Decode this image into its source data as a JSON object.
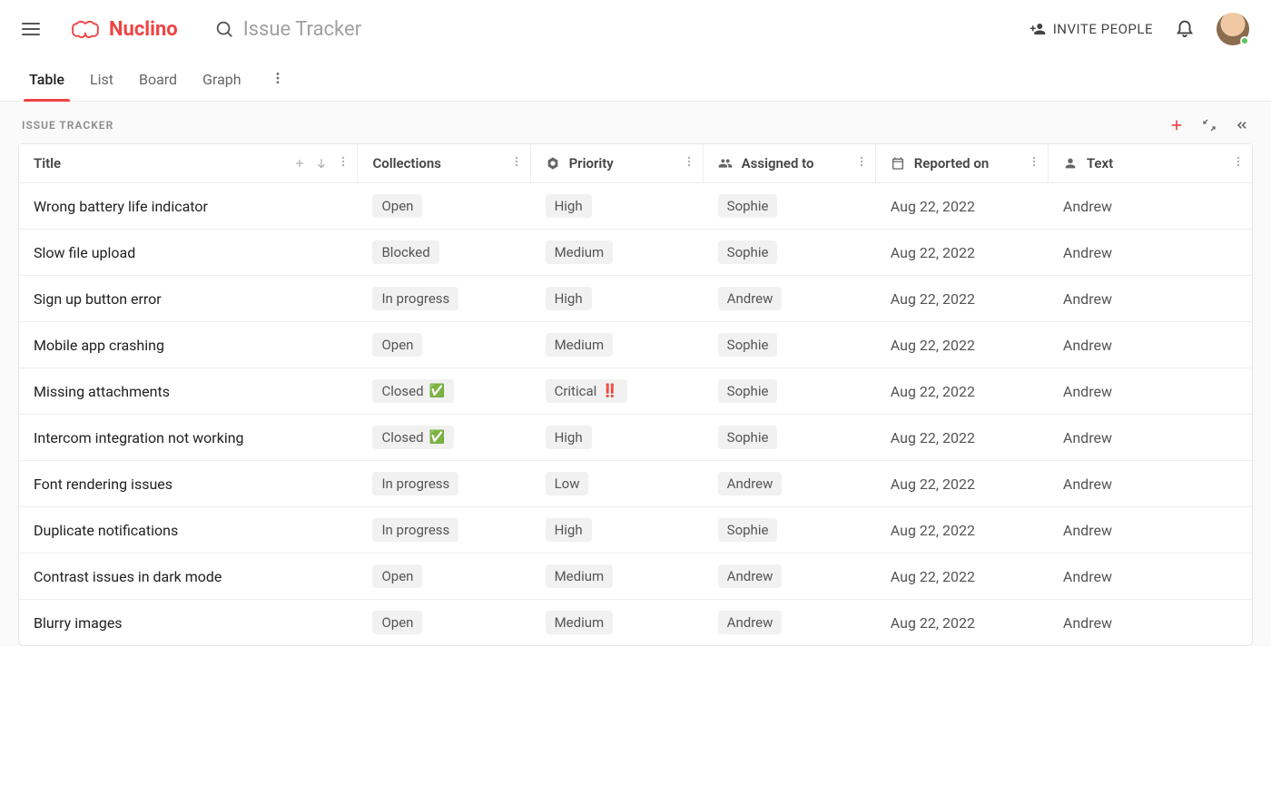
{
  "app": {
    "brand": "Nuclino",
    "brand_color": "#ef4343",
    "search_placeholder": "Issue Tracker",
    "invite_label": "INVITE PEOPLE"
  },
  "tabs": {
    "items": [
      "Table",
      "List",
      "Board",
      "Graph"
    ],
    "active_index": 0
  },
  "section": {
    "title": "ISSUE TRACKER"
  },
  "table": {
    "columns": [
      {
        "key": "title",
        "label": "Title",
        "icon": null,
        "show_add_sort": true
      },
      {
        "key": "collections",
        "label": "Collections",
        "icon": null,
        "show_add_sort": false
      },
      {
        "key": "priority",
        "label": "Priority",
        "icon": "tag",
        "show_add_sort": false
      },
      {
        "key": "assigned",
        "label": "Assigned to",
        "icon": "people",
        "show_add_sort": false
      },
      {
        "key": "reported",
        "label": "Reported on",
        "icon": "calendar",
        "show_add_sort": false
      },
      {
        "key": "text",
        "label": "Text",
        "icon": "person",
        "show_add_sort": false
      }
    ],
    "rows": [
      {
        "title": "Wrong battery life indicator",
        "collections": "Open",
        "collections_emoji": "",
        "priority": "High",
        "priority_emoji": "",
        "assigned": "Sophie",
        "reported": "Aug 22, 2022",
        "text": "Andrew"
      },
      {
        "title": "Slow file upload",
        "collections": "Blocked",
        "collections_emoji": "",
        "priority": "Medium",
        "priority_emoji": "",
        "assigned": "Sophie",
        "reported": "Aug 22, 2022",
        "text": "Andrew"
      },
      {
        "title": "Sign up button error",
        "collections": "In progress",
        "collections_emoji": "",
        "priority": "High",
        "priority_emoji": "",
        "assigned": "Andrew",
        "reported": "Aug 22, 2022",
        "text": "Andrew"
      },
      {
        "title": "Mobile app crashing",
        "collections": "Open",
        "collections_emoji": "",
        "priority": "Medium",
        "priority_emoji": "",
        "assigned": "Sophie",
        "reported": "Aug 22, 2022",
        "text": "Andrew"
      },
      {
        "title": "Missing attachments",
        "collections": "Closed",
        "collections_emoji": "✅",
        "priority": "Critical",
        "priority_emoji": "‼️",
        "assigned": "Sophie",
        "reported": "Aug 22, 2022",
        "text": "Andrew"
      },
      {
        "title": "Intercom integration not working",
        "collections": "Closed",
        "collections_emoji": "✅",
        "priority": "High",
        "priority_emoji": "",
        "assigned": "Sophie",
        "reported": "Aug 22, 2022",
        "text": "Andrew"
      },
      {
        "title": "Font rendering issues",
        "collections": "In progress",
        "collections_emoji": "",
        "priority": "Low",
        "priority_emoji": "",
        "assigned": "Andrew",
        "reported": "Aug 22, 2022",
        "text": "Andrew"
      },
      {
        "title": "Duplicate notifications",
        "collections": "In progress",
        "collections_emoji": "",
        "priority": "High",
        "priority_emoji": "",
        "assigned": "Sophie",
        "reported": "Aug 22, 2022",
        "text": "Andrew"
      },
      {
        "title": "Contrast issues in dark mode",
        "collections": "Open",
        "collections_emoji": "",
        "priority": "Medium",
        "priority_emoji": "",
        "assigned": "Andrew",
        "reported": "Aug 22, 2022",
        "text": "Andrew"
      },
      {
        "title": "Blurry images",
        "collections": "Open",
        "collections_emoji": "",
        "priority": "Medium",
        "priority_emoji": "",
        "assigned": "Andrew",
        "reported": "Aug 22, 2022",
        "text": "Andrew"
      }
    ]
  },
  "colors": {
    "background": "#ffffff",
    "panel_bg": "#fafafa",
    "border": "#e6e6e6",
    "row_border": "#eeeeee",
    "pill_bg": "#f1f1f1",
    "accent": "#ef4343",
    "text_primary": "#222222",
    "text_secondary": "#666666",
    "status_online": "#5ac85a"
  }
}
